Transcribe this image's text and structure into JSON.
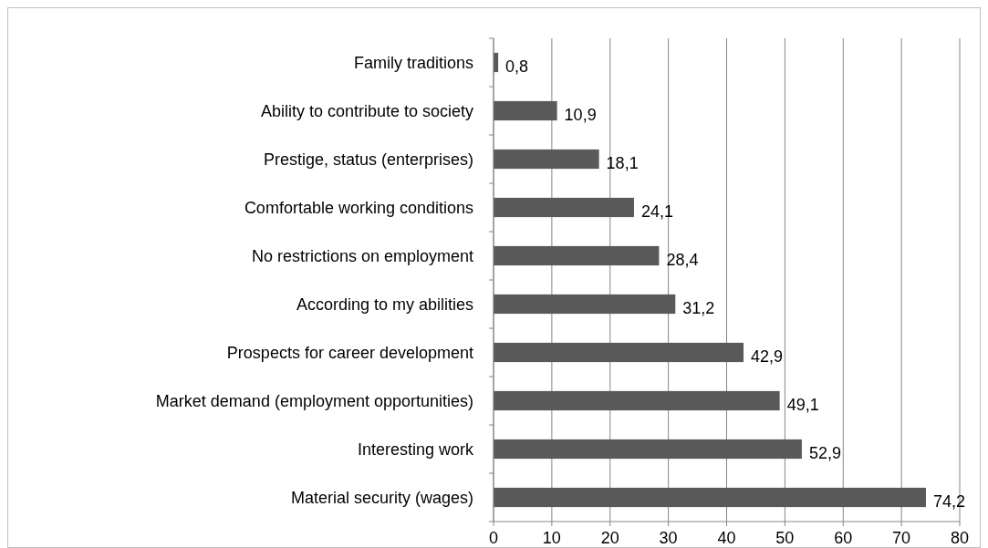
{
  "chart_data": {
    "type": "bar",
    "orientation": "horizontal",
    "categories": [
      "Family traditions",
      "Ability to contribute to society",
      "Prestige, status (enterprises)",
      "Comfortable working conditions",
      "No restrictions on employment",
      "According to my abilities",
      "Prospects for career development",
      "Market demand (employment opportunities)",
      "Interesting work",
      "Material security (wages)"
    ],
    "values": [
      0.8,
      10.9,
      18.1,
      24.1,
      28.4,
      31.2,
      42.9,
      49.1,
      52.9,
      74.2
    ],
    "value_labels": [
      "0,8",
      "10,9",
      "18,1",
      "24,1",
      "28,4",
      "31,2",
      "42,9",
      "49,1",
      "52,9",
      "74,2"
    ],
    "color": "#595959",
    "xlim": [
      0,
      80
    ],
    "xticks": [
      0,
      10,
      20,
      30,
      40,
      50,
      60,
      70,
      80
    ],
    "grid": "x"
  }
}
